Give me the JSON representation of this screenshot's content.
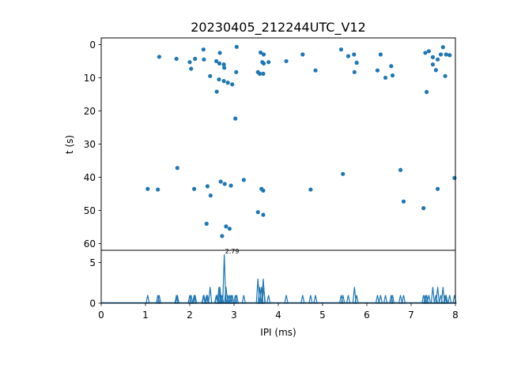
{
  "chart_data": [
    {
      "type": "scatter",
      "title": "20230405_212244UTC_V12",
      "ylabel": "t (s)",
      "xlim": [
        0,
        8
      ],
      "ylim": [
        62,
        -2
      ],
      "y_inverted": true,
      "yticks": [
        0,
        10,
        20,
        30,
        40,
        50,
        60
      ],
      "color": "#1f77b4",
      "points": [
        [
          1.31,
          3.7
        ],
        [
          1.7,
          4.3
        ],
        [
          2.0,
          5.3
        ],
        [
          2.03,
          7.3
        ],
        [
          2.12,
          4.3
        ],
        [
          2.31,
          1.5
        ],
        [
          2.32,
          4.5
        ],
        [
          2.46,
          9.5
        ],
        [
          2.6,
          5.0
        ],
        [
          2.61,
          14.2
        ],
        [
          2.66,
          10.5
        ],
        [
          2.67,
          5.7
        ],
        [
          2.68,
          2.5
        ],
        [
          2.77,
          6.0
        ],
        [
          2.78,
          7.0
        ],
        [
          2.77,
          11.0
        ],
        [
          2.86,
          11.5
        ],
        [
          2.96,
          12.0
        ],
        [
          3.05,
          8.3
        ],
        [
          3.06,
          0.7
        ],
        [
          3.03,
          22.3
        ],
        [
          3.54,
          8.3
        ],
        [
          3.58,
          8.8
        ],
        [
          3.6,
          2.4
        ],
        [
          3.64,
          5.3
        ],
        [
          3.67,
          3.0
        ],
        [
          3.67,
          5.7
        ],
        [
          3.66,
          8.8
        ],
        [
          3.78,
          5.3
        ],
        [
          4.18,
          5.0
        ],
        [
          4.55,
          3.0
        ],
        [
          4.84,
          7.8
        ],
        [
          5.42,
          1.5
        ],
        [
          5.58,
          3.5
        ],
        [
          5.71,
          3.0
        ],
        [
          5.72,
          8.3
        ],
        [
          5.77,
          5.5
        ],
        [
          6.24,
          7.8
        ],
        [
          6.31,
          3.0
        ],
        [
          6.42,
          10.0
        ],
        [
          6.55,
          6.5
        ],
        [
          6.58,
          9.3
        ],
        [
          7.32,
          2.5
        ],
        [
          7.4,
          2.0
        ],
        [
          7.49,
          3.8
        ],
        [
          7.49,
          6.0
        ],
        [
          7.56,
          7.7
        ],
        [
          7.6,
          4.5
        ],
        [
          7.67,
          3.0
        ],
        [
          7.72,
          0.8
        ],
        [
          7.77,
          9.5
        ],
        [
          7.79,
          3.0
        ],
        [
          7.87,
          3.2
        ],
        [
          7.35,
          14.3
        ],
        [
          1.05,
          43.5
        ],
        [
          1.28,
          43.7
        ],
        [
          1.72,
          37.2
        ],
        [
          2.1,
          43.5
        ],
        [
          2.4,
          42.7
        ],
        [
          2.47,
          45.5
        ],
        [
          2.38,
          54.0
        ],
        [
          2.7,
          41.3
        ],
        [
          2.79,
          42.0
        ],
        [
          2.82,
          54.8
        ],
        [
          2.93,
          42.5
        ],
        [
          2.9,
          55.5
        ],
        [
          2.73,
          57.7
        ],
        [
          3.22,
          40.8
        ],
        [
          3.54,
          50.5
        ],
        [
          3.62,
          43.5
        ],
        [
          3.66,
          44.0
        ],
        [
          3.66,
          51.3
        ],
        [
          4.73,
          43.7
        ],
        [
          5.46,
          39.0
        ],
        [
          6.76,
          37.8
        ],
        [
          6.83,
          47.3
        ],
        [
          7.28,
          49.3
        ],
        [
          7.6,
          43.5
        ],
        [
          7.98,
          40.2
        ]
      ]
    },
    {
      "type": "area",
      "xlabel": "IPI (ms)",
      "xlim": [
        0,
        8
      ],
      "ylim": [
        0,
        6.5
      ],
      "xticks": [
        0,
        1,
        2,
        3,
        4,
        5,
        6,
        7,
        8
      ],
      "yticks": [
        0,
        5
      ],
      "color": "#1f77b4",
      "annotation": "2.79",
      "spikes": [
        [
          1.05,
          1
        ],
        [
          1.28,
          1
        ],
        [
          1.31,
          1
        ],
        [
          1.7,
          1
        ],
        [
          1.72,
          1
        ],
        [
          2.0,
          1
        ],
        [
          2.03,
          1
        ],
        [
          2.1,
          1
        ],
        [
          2.12,
          1
        ],
        [
          2.31,
          1
        ],
        [
          2.32,
          1
        ],
        [
          2.38,
          1
        ],
        [
          2.4,
          1
        ],
        [
          2.46,
          2
        ],
        [
          2.6,
          1
        ],
        [
          2.61,
          1
        ],
        [
          2.66,
          2
        ],
        [
          2.68,
          2
        ],
        [
          2.7,
          1
        ],
        [
          2.73,
          1
        ],
        [
          2.78,
          6
        ],
        [
          2.82,
          2
        ],
        [
          2.86,
          1
        ],
        [
          2.9,
          1
        ],
        [
          2.93,
          1
        ],
        [
          2.96,
          1
        ],
        [
          3.03,
          1
        ],
        [
          3.06,
          1
        ],
        [
          3.22,
          1
        ],
        [
          3.54,
          3
        ],
        [
          3.58,
          2
        ],
        [
          3.62,
          2
        ],
        [
          3.66,
          3
        ],
        [
          3.67,
          2
        ],
        [
          3.78,
          1
        ],
        [
          4.18,
          1
        ],
        [
          4.55,
          1
        ],
        [
          4.73,
          1
        ],
        [
          4.84,
          1
        ],
        [
          5.42,
          1
        ],
        [
          5.46,
          1
        ],
        [
          5.58,
          1
        ],
        [
          5.72,
          2
        ],
        [
          5.77,
          1
        ],
        [
          6.24,
          1
        ],
        [
          6.31,
          1
        ],
        [
          6.42,
          1
        ],
        [
          6.55,
          1
        ],
        [
          6.58,
          1
        ],
        [
          6.76,
          1
        ],
        [
          6.83,
          1
        ],
        [
          7.28,
          1
        ],
        [
          7.32,
          1
        ],
        [
          7.35,
          1
        ],
        [
          7.4,
          1
        ],
        [
          7.49,
          2
        ],
        [
          7.56,
          1
        ],
        [
          7.6,
          2
        ],
        [
          7.67,
          1
        ],
        [
          7.72,
          2
        ],
        [
          7.77,
          1
        ],
        [
          7.79,
          1
        ],
        [
          7.87,
          1
        ],
        [
          7.98,
          1
        ]
      ]
    }
  ]
}
